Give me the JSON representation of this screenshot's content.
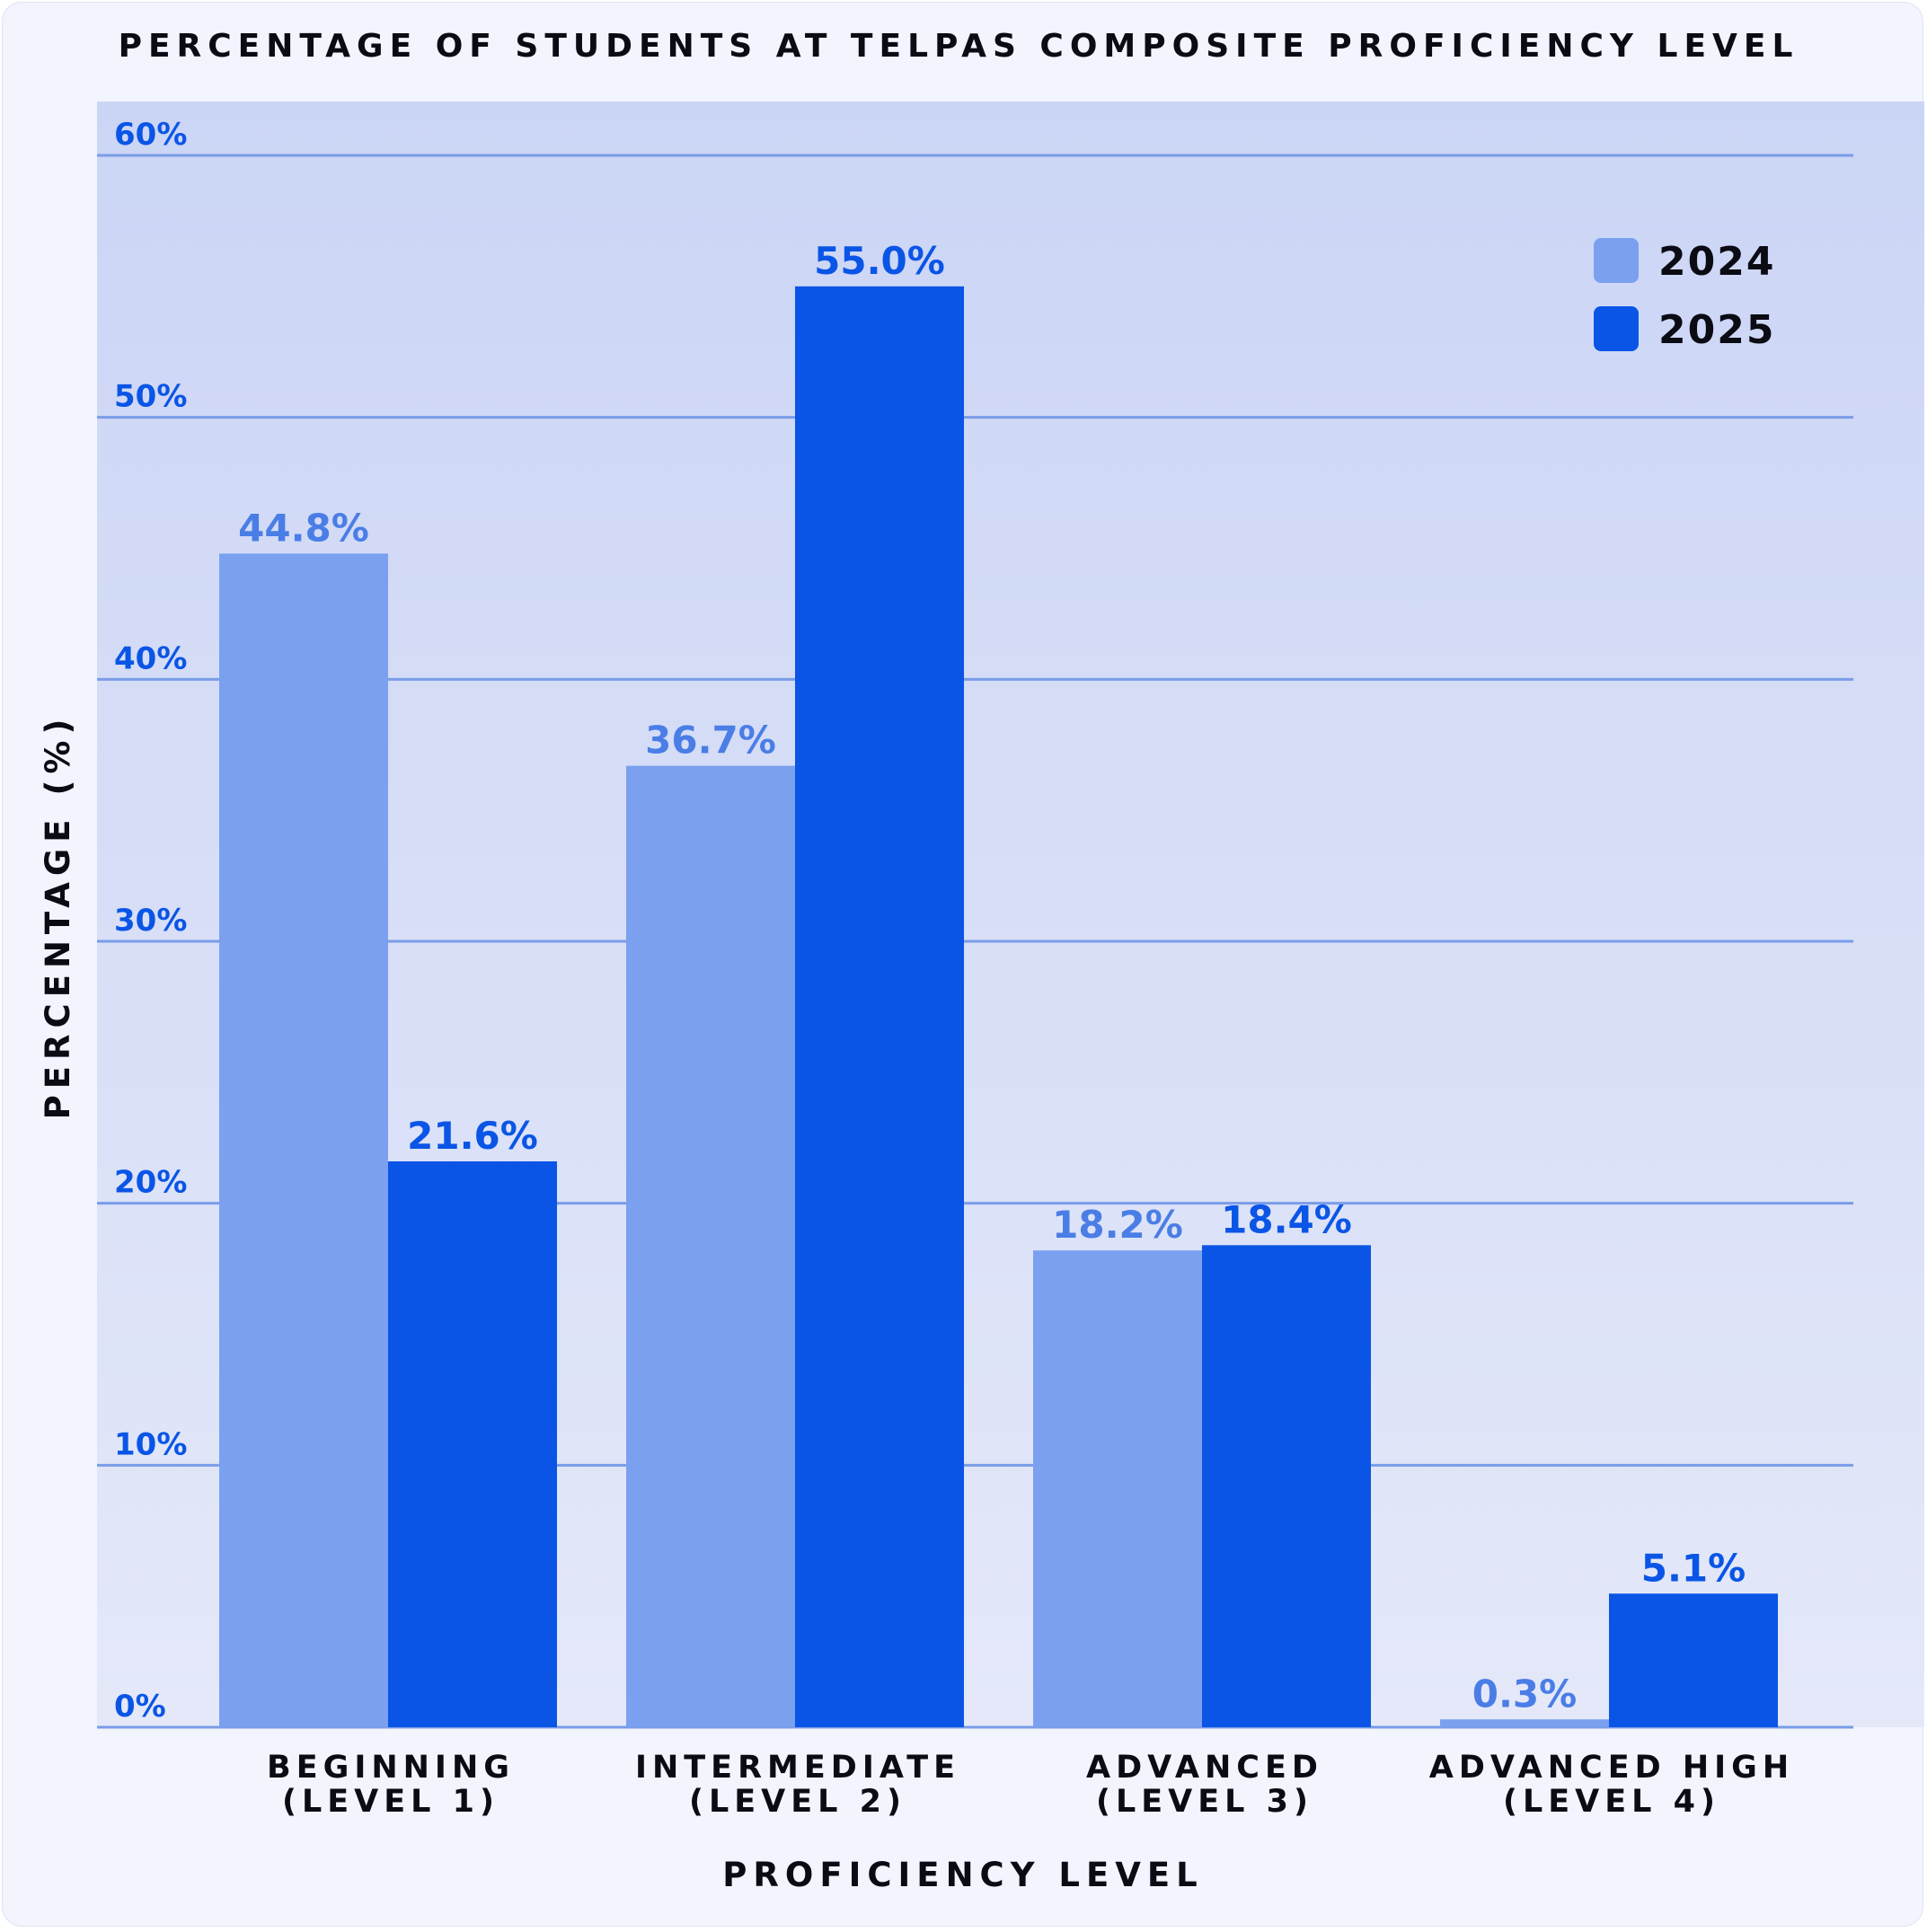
{
  "chart_data": {
    "type": "bar",
    "title": "PERCENTAGE OF STUDENTS AT TELPAS COMPOSITE PROFICIENCY LEVEL",
    "xlabel": "PROFICIENCY LEVEL",
    "ylabel": "PERCENTAGE (%)",
    "ylim": [
      0,
      60
    ],
    "yticks": [
      0,
      10,
      20,
      30,
      40,
      50,
      60
    ],
    "ytick_labels": [
      "0%",
      "10%",
      "20%",
      "30%",
      "40%",
      "50%",
      "60%"
    ],
    "grid": true,
    "legend_position": "top-right",
    "categories": [
      [
        "BEGINNING",
        "(LEVEL 1)"
      ],
      [
        "INTERMEDIATE",
        "(LEVEL 2)"
      ],
      [
        "ADVANCED",
        "(LEVEL 3)"
      ],
      [
        "ADVANCED HIGH",
        "(LEVEL 4)"
      ]
    ],
    "series": [
      {
        "name": "2024",
        "values": [
          44.8,
          36.7,
          18.2,
          0.3
        ],
        "labels": [
          "44.8%",
          "36.7%",
          "18.2%",
          "0.3%"
        ],
        "color": "#7ba0f0",
        "label_color": "#4a7ee6"
      },
      {
        "name": "2025",
        "values": [
          21.6,
          55.0,
          18.4,
          5.1
        ],
        "labels": [
          "21.6%",
          "55.0%",
          "18.4%",
          "5.1%"
        ],
        "color": "#0a55e6",
        "label_color": "#0a55e6"
      }
    ],
    "colors": {
      "plot_top": "#cbd5f5",
      "plot_bottom": "#e4e8f9",
      "grid": "#7a9ce8",
      "tick_text": "#0a55e6"
    }
  }
}
